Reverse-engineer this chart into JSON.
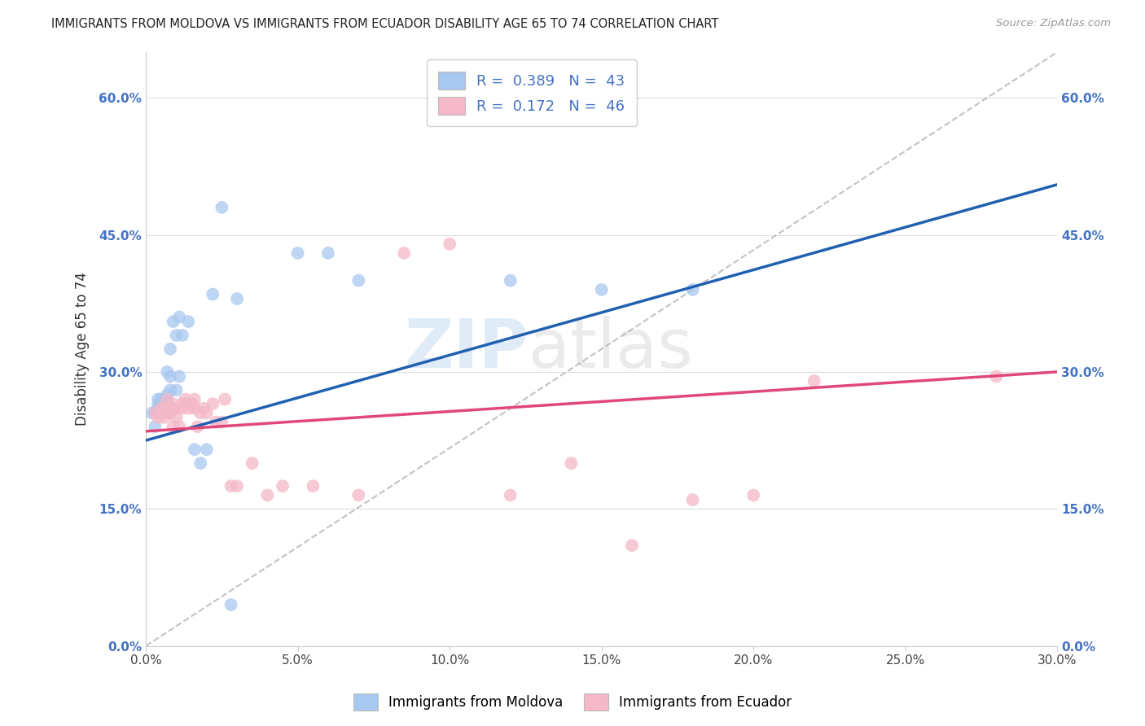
{
  "title": "IMMIGRANTS FROM MOLDOVA VS IMMIGRANTS FROM ECUADOR DISABILITY AGE 65 TO 74 CORRELATION CHART",
  "source": "Source: ZipAtlas.com",
  "ylabel": "Disability Age 65 to 74",
  "xlim": [
    0.0,
    0.3
  ],
  "ylim": [
    0.0,
    0.65
  ],
  "xticks": [
    0.0,
    0.05,
    0.1,
    0.15,
    0.2,
    0.25,
    0.3
  ],
  "yticks": [
    0.0,
    0.15,
    0.3,
    0.45,
    0.6
  ],
  "xtick_labels": [
    "0.0%",
    "5.0%",
    "10.0%",
    "15.0%",
    "20.0%",
    "25.0%",
    "30.0%"
  ],
  "ytick_labels": [
    "0.0%",
    "15.0%",
    "30.0%",
    "45.0%",
    "60.0%"
  ],
  "legend_labels": [
    "Immigrants from Moldova",
    "Immigrants from Ecuador"
  ],
  "legend_R": [
    0.389,
    0.172
  ],
  "legend_N": [
    43,
    46
  ],
  "blue_color": "#a8c8f0",
  "pink_color": "#f5b8c8",
  "blue_line_color": "#2060b0",
  "pink_line_color": "#e04878",
  "moldova_x": [
    0.002,
    0.003,
    0.003,
    0.004,
    0.004,
    0.004,
    0.004,
    0.005,
    0.005,
    0.005,
    0.005,
    0.006,
    0.006,
    0.006,
    0.007,
    0.007,
    0.007,
    0.007,
    0.008,
    0.008,
    0.008,
    0.009,
    0.009,
    0.01,
    0.01,
    0.011,
    0.011,
    0.012,
    0.013,
    0.014,
    0.016,
    0.018,
    0.02,
    0.022,
    0.025,
    0.028,
    0.03,
    0.05,
    0.06,
    0.07,
    0.12,
    0.15,
    0.18
  ],
  "moldova_y": [
    0.255,
    0.24,
    0.255,
    0.26,
    0.255,
    0.265,
    0.27,
    0.26,
    0.265,
    0.255,
    0.27,
    0.255,
    0.265,
    0.26,
    0.27,
    0.265,
    0.275,
    0.3,
    0.28,
    0.295,
    0.325,
    0.26,
    0.355,
    0.28,
    0.34,
    0.36,
    0.295,
    0.34,
    0.265,
    0.355,
    0.215,
    0.2,
    0.215,
    0.385,
    0.48,
    0.045,
    0.38,
    0.43,
    0.43,
    0.4,
    0.4,
    0.39,
    0.39
  ],
  "ecuador_x": [
    0.003,
    0.004,
    0.005,
    0.005,
    0.006,
    0.006,
    0.007,
    0.007,
    0.008,
    0.008,
    0.009,
    0.009,
    0.01,
    0.01,
    0.011,
    0.012,
    0.012,
    0.013,
    0.014,
    0.015,
    0.016,
    0.016,
    0.017,
    0.018,
    0.019,
    0.02,
    0.022,
    0.023,
    0.025,
    0.026,
    0.028,
    0.03,
    0.035,
    0.04,
    0.045,
    0.055,
    0.07,
    0.085,
    0.1,
    0.12,
    0.14,
    0.16,
    0.18,
    0.2,
    0.22,
    0.28
  ],
  "ecuador_y": [
    0.255,
    0.25,
    0.255,
    0.26,
    0.25,
    0.26,
    0.255,
    0.27,
    0.255,
    0.26,
    0.24,
    0.265,
    0.25,
    0.26,
    0.24,
    0.26,
    0.265,
    0.27,
    0.26,
    0.265,
    0.27,
    0.26,
    0.24,
    0.255,
    0.26,
    0.255,
    0.265,
    0.245,
    0.245,
    0.27,
    0.175,
    0.175,
    0.2,
    0.165,
    0.175,
    0.175,
    0.165,
    0.43,
    0.44,
    0.165,
    0.2,
    0.11,
    0.16,
    0.165,
    0.29,
    0.295
  ]
}
